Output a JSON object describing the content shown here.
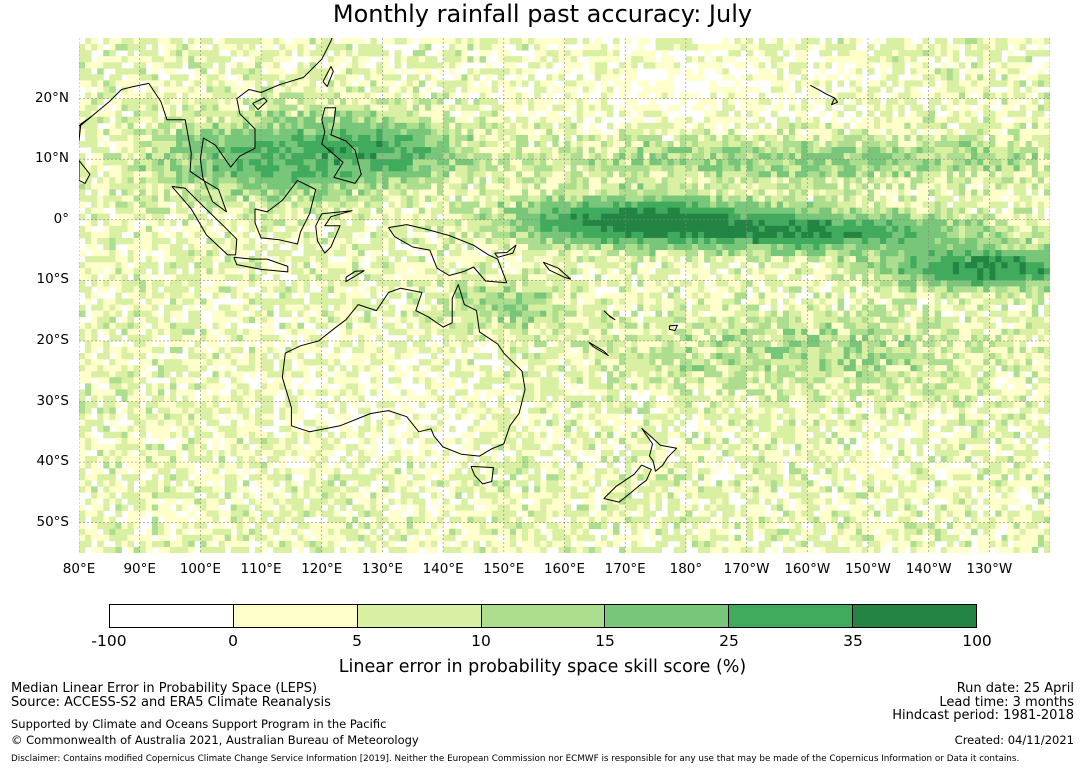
{
  "title": "Monthly rainfall past accuracy: July",
  "map": {
    "lat_ticks": [
      "20°N",
      "10°N",
      "0°",
      "10°S",
      "20°S",
      "30°S",
      "40°S",
      "50°S"
    ],
    "lon_ticks": [
      "80°E",
      "90°E",
      "100°E",
      "110°E",
      "120°E",
      "130°E",
      "140°E",
      "150°E",
      "160°E",
      "170°E",
      "180°",
      "170°W",
      "160°W",
      "150°W",
      "140°W",
      "130°W"
    ],
    "extent": {
      "lon_min": 80,
      "lon_max": 240,
      "lat_min": -55,
      "lat_max": 30
    },
    "features": [
      "Australia",
      "Indonesia",
      "Papua New Guinea",
      "New Zealand",
      "Philippines",
      "Indochina"
    ]
  },
  "colorbar": {
    "tick_labels": [
      "-100",
      "0",
      "5",
      "10",
      "15",
      "25",
      "35",
      "100"
    ],
    "colors": [
      "#ffffff",
      "#ffffcc",
      "#d9f0a3",
      "#addd8e",
      "#78c679",
      "#41ab5d",
      "#238443"
    ],
    "label": "Linear error in probability space skill score (%)"
  },
  "footer": {
    "method": "Median Linear Error in Probability Space (LEPS)",
    "source": "Source: ACCESS-S2 and ERA5 Climate Reanalysis",
    "support": "Supported by Climate and Oceans Support Program in the Pacific",
    "copyright": "© Commonwealth of Australia 2021, Australian Bureau of Meteorology",
    "run_date": "Run date: 25 April",
    "lead_time": "Lead time: 3 months",
    "hindcast": "Hindcast period: 1981-2018",
    "created": "Created: 04/11/2021",
    "disclaimer": "Disclaimer: Contains modified Copernicus Climate Change Service Information [2019]. Neither the European Commission nor ECMWF is responsible for any use that may be made of the Copernicus Information or Data it contains."
  }
}
